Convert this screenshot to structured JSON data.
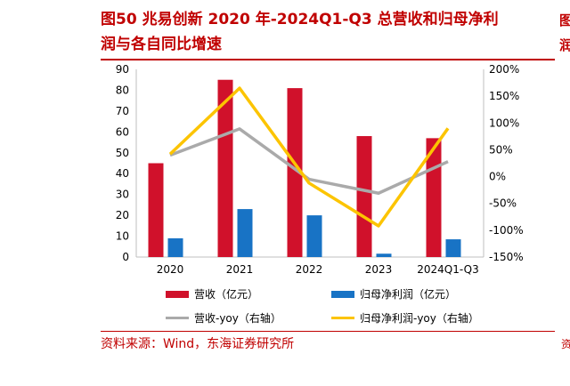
{
  "title_lines": [
    "图50  兆易创新  2020  年-2024Q1-Q3  总营收和归母净利",
    "润与各自同比增速"
  ],
  "edge_glyphs": [
    "图",
    "润",
    "资"
  ],
  "source": "资料来源：Wind，东海证券研究所",
  "colors": {
    "revenue": "#d0112b",
    "profit": "#1873c5",
    "revenue_yoy": "#aaaaaa",
    "profit_yoy": "#fcc400",
    "brand": "#c00000"
  },
  "chart_data": {
    "type": "bar",
    "categories": [
      "2020",
      "2021",
      "2022",
      "2023",
      "2024Q1-Q3"
    ],
    "series": [
      {
        "name": "营收（亿元）",
        "type": "bar",
        "axis": "left",
        "values": [
          45,
          85,
          81,
          58,
          57
        ]
      },
      {
        "name": "归母净利润（亿元）",
        "type": "bar",
        "axis": "left",
        "values": [
          9,
          23,
          20,
          1.6,
          8.5
        ]
      },
      {
        "name": "营收-yoy（右轴）",
        "type": "line",
        "axis": "right",
        "values": [
          40,
          89,
          -5,
          -31,
          28
        ]
      },
      {
        "name": "归母净利润-yoy（右轴）",
        "type": "line",
        "axis": "right",
        "values": [
          42,
          165,
          -12,
          -92,
          90
        ]
      }
    ],
    "ylim_left": [
      0,
      90
    ],
    "yticks_left": [
      "0",
      "10",
      "20",
      "30",
      "40",
      "50",
      "60",
      "70",
      "80",
      "90"
    ],
    "ylim_right": [
      -150,
      200
    ],
    "yticks_right": [
      "200%",
      "150%",
      "100%",
      "50%",
      "0%",
      "-50%",
      "-100%",
      "-150%"
    ],
    "grid": false,
    "legend_position": "bottom"
  }
}
